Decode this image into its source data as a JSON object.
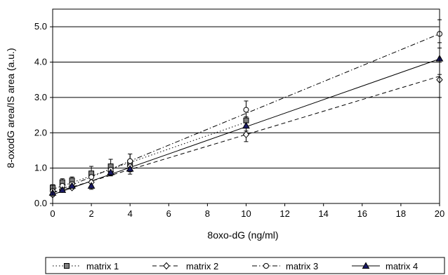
{
  "chart_data": {
    "type": "scatter",
    "title": "",
    "xlabel": "8oxo-dG (ng/ml)",
    "ylabel": "8-oxodG area/IS area (a.u.)",
    "xlim": [
      0,
      20
    ],
    "ylim": [
      0,
      5.5
    ],
    "x_ticks": [
      "0",
      "2",
      "4",
      "6",
      "8",
      "10",
      "12",
      "14",
      "16",
      "18",
      "20"
    ],
    "y_ticks": [
      "0.0",
      "1.0",
      "2.0",
      "3.0",
      "4.0",
      "5.0"
    ],
    "grid": "horizontal",
    "legend_position": "bottom",
    "series": [
      {
        "name": "matrix 1",
        "marker": "square",
        "line": "dotted",
        "color": "#808080",
        "x": [
          0,
          0.5,
          1,
          2,
          3,
          4,
          10
        ],
        "y": [
          0.45,
          0.6,
          0.65,
          0.85,
          1.05,
          1.15,
          2.35
        ],
        "err": [
          0.08,
          0.1,
          0.1,
          0.2,
          0.2,
          0.25,
          0.3
        ],
        "fit": [
          0.4,
          0.19
        ]
      },
      {
        "name": "matrix 2",
        "marker": "diamond",
        "line": "dashed",
        "color": "#ffffff",
        "x": [
          0,
          0.5,
          1,
          2,
          3,
          4,
          10,
          20
        ],
        "y": [
          0.25,
          0.4,
          0.45,
          0.6,
          0.9,
          1.05,
          1.95,
          3.5
        ],
        "err": [
          0.05,
          0.05,
          0.05,
          0.1,
          0.1,
          0.15,
          0.2,
          0.5
        ],
        "fit": [
          0.3,
          0.165
        ]
      },
      {
        "name": "matrix 3",
        "marker": "circle",
        "line": "dashdot",
        "color": "#ffffff",
        "x": [
          0,
          0.5,
          1,
          2,
          3,
          4,
          10,
          20
        ],
        "y": [
          0.35,
          0.5,
          0.55,
          0.75,
          0.95,
          1.2,
          2.65,
          4.8
        ],
        "err": [
          0.05,
          0.1,
          0.1,
          0.15,
          0.15,
          0.2,
          0.25,
          0.4
        ],
        "fit": [
          0.3,
          0.225
        ]
      },
      {
        "name": "matrix 4",
        "marker": "triangle",
        "line": "solid",
        "color": "#1a1a66",
        "x": [
          0,
          0.5,
          1,
          2,
          3,
          4,
          10,
          20
        ],
        "y": [
          0.3,
          0.38,
          0.5,
          0.5,
          0.88,
          0.98,
          2.2,
          4.1
        ],
        "err": [
          0.05,
          0.05,
          0.05,
          0.1,
          0.1,
          0.15,
          0.25,
          0.45
        ],
        "fit": [
          0.25,
          0.192
        ]
      }
    ]
  }
}
